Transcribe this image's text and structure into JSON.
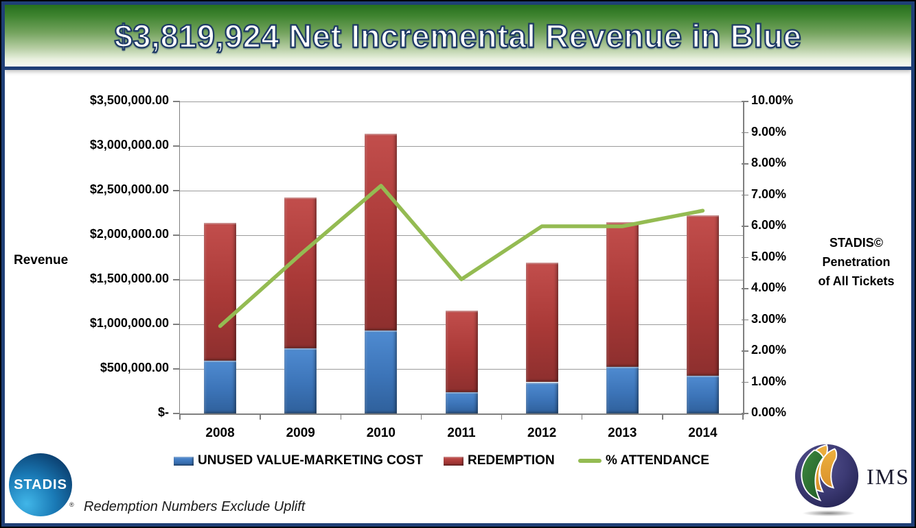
{
  "slide": {
    "title": "$3,819,924 Net Incremental Revenue in Blue",
    "footnote": "Redemption Numbers Exclude Uplift"
  },
  "logos": {
    "stadis": {
      "text": "STADIS",
      "registered_mark": "®"
    },
    "ims": {
      "text": "IMS"
    }
  },
  "colors": {
    "bar_blue": "#3c74b8",
    "bar_red": "#a93937",
    "line_green": "#94bb52",
    "banner_green_dark": "#266f1d",
    "banner_green_light": "#f6faf2",
    "border_navy": "#1f3f76",
    "grid_gray": "#9b9b9b",
    "axis_gray": "#7f7f7f",
    "title_outline_navy": "#1e3a66"
  },
  "chart_data": {
    "type": "bar",
    "subtype": "stacked-bars-with-line-overlay",
    "categories": [
      "2008",
      "2009",
      "2010",
      "2011",
      "2012",
      "2013",
      "2014"
    ],
    "bar_series": [
      {
        "name": "UNUSED VALUE-MARKETING COST",
        "color": "#3c74b8",
        "values": [
          590000,
          730000,
          930000,
          240000,
          350000,
          520000,
          420000
        ]
      },
      {
        "name": "REDEMPTION",
        "color": "#a93937",
        "values": [
          1550000,
          1690000,
          2210000,
          915000,
          1340000,
          1630000,
          1800000
        ]
      }
    ],
    "bar_totals": [
      2140000,
      2420000,
      3140000,
      1155000,
      1690000,
      2150000,
      2220000
    ],
    "line_series": {
      "name": "% ATTENDANCE",
      "color": "#94bb52",
      "values": [
        2.8,
        5.1,
        7.3,
        4.3,
        6.0,
        6.0,
        6.5
      ]
    },
    "left_axis": {
      "label": "Revenue",
      "min": 0,
      "max": 3500000,
      "step": 500000,
      "tick_labels": [
        "$3,500,000.00",
        "$3,000,000.00",
        "$2,500,000.00",
        "$2,000,000.00",
        "$1,500,000.00",
        "$1,000,000.00",
        "$500,000.00",
        "$-"
      ]
    },
    "right_axis": {
      "label": "STADIS© Penetration of All Tickets",
      "label_lines": [
        "STADIS©",
        "Penetration",
        "of All Tickets"
      ],
      "min": 0,
      "max": 10,
      "step": 1,
      "tick_labels": [
        "10.00%",
        "9.00%",
        "8.00%",
        "7.00%",
        "6.00%",
        "5.00%",
        "4.00%",
        "3.00%",
        "2.00%",
        "1.00%",
        "0.00%"
      ]
    },
    "gridlines": true,
    "legend_position": "bottom",
    "legend": [
      {
        "label": "UNUSED VALUE-MARKETING COST",
        "swatch": "bar",
        "color": "#3c74b8"
      },
      {
        "label": "REDEMPTION",
        "swatch": "bar",
        "color": "#a93937"
      },
      {
        "label": "% ATTENDANCE",
        "swatch": "line",
        "color": "#94bb52"
      }
    ]
  }
}
